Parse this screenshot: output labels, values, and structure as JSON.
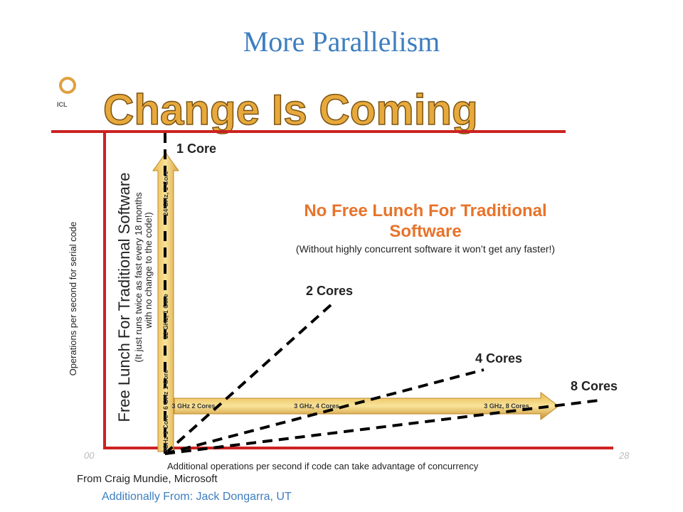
{
  "title": "More Parallelism",
  "banner": {
    "logo": "ICL",
    "heading": "Change Is Coming"
  },
  "diagram": {
    "core_lines": [
      "1 Core",
      "2 Cores",
      "4 Cores",
      "8 Cores"
    ],
    "callout": {
      "title_lines": [
        "No Free Lunch For Traditional",
        "Software"
      ],
      "note": "(Without highly concurrent software it won’t get any faster!)"
    },
    "free_lunch": {
      "title": "Free Lunch For Traditional Software",
      "note_lines": [
        "(It just runs twice as fast every 18 months",
        "with no change to the code!)"
      ]
    },
    "y_axis_label": "Operations per second for serial code",
    "x_axis_label": "Additional operations per second if code can take advantage of concurrency",
    "x_start": "00",
    "x_end": "28",
    "vertical_arrow_labels": [
      "24 GHz, 1 Core",
      "12 GHz, 1 Core",
      "6 GHz 1 Core",
      "3GHz 1 Core"
    ],
    "horizontal_arrow_labels": [
      "3 GHz 2 Cores",
      "3 GHz, 4 Cores",
      "3 GHz, 8 Cores"
    ]
  },
  "credits": [
    "From Craig Mundie, Microsoft",
    "Additionally From: Jack Dongarra, UT"
  ]
}
